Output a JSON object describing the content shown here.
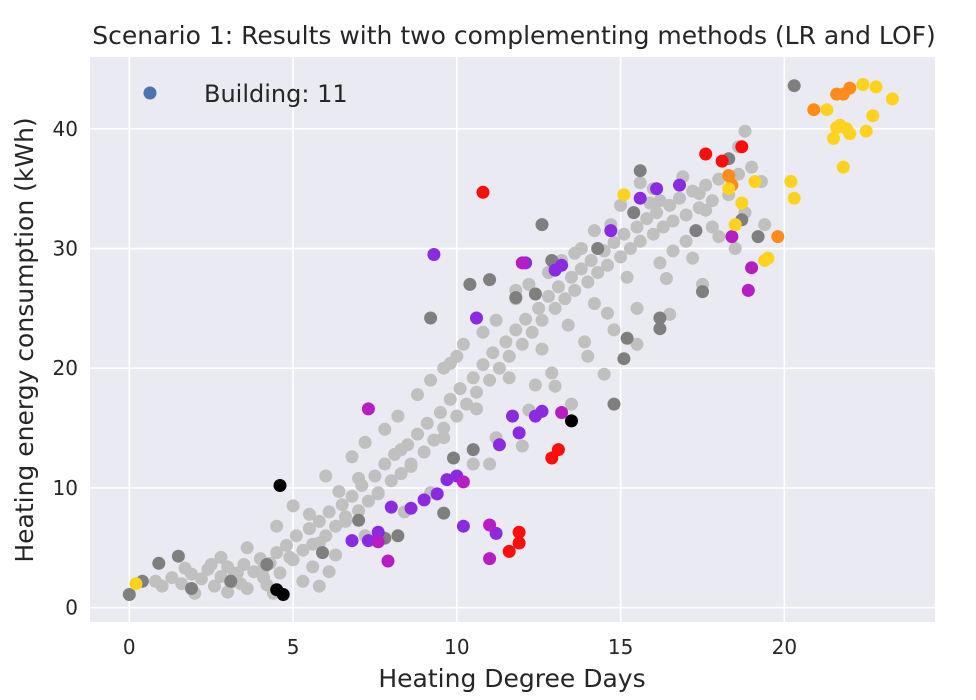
{
  "chart_data": {
    "type": "scatter",
    "title": "Scenario 1: Results with two complementing methods (LR and LOF)",
    "xlabel": "Heating Degree Days",
    "ylabel": "Heating energy consumption (kWh)",
    "xlim": [
      -1.2,
      24.6
    ],
    "ylim": [
      -1.2,
      46
    ],
    "xticks": [
      0,
      5,
      10,
      15,
      20
    ],
    "yticks": [
      0,
      10,
      20,
      30,
      40
    ],
    "grid": true,
    "background": "#eaeaf2",
    "legend": {
      "placement": "top-left",
      "entries": [
        {
          "label": "Building: 11",
          "color": "#4c72b0"
        }
      ]
    },
    "series": [
      {
        "color": "#c0c0c0",
        "points": [
          [
            0.8,
            2.2
          ],
          [
            1.0,
            1.8
          ],
          [
            1.3,
            2.5
          ],
          [
            1.6,
            2.0
          ],
          [
            1.9,
            2.8
          ],
          [
            2.2,
            2.4
          ],
          [
            2.4,
            3.2
          ],
          [
            2.6,
            1.8
          ],
          [
            2.8,
            2.6
          ],
          [
            3.0,
            3.4
          ],
          [
            3.1,
            2.1
          ],
          [
            3.3,
            2.9
          ],
          [
            3.5,
            3.6
          ],
          [
            3.6,
            1.6
          ],
          [
            3.8,
            3.0
          ],
          [
            4.0,
            4.1
          ],
          [
            4.1,
            2.5
          ],
          [
            4.3,
            3.7
          ],
          [
            4.5,
            4.6
          ],
          [
            4.6,
            2.9
          ],
          [
            4.8,
            5.2
          ],
          [
            5.0,
            4.0
          ],
          [
            5.1,
            6.0
          ],
          [
            5.3,
            4.8
          ],
          [
            5.5,
            6.6
          ],
          [
            5.6,
            5.3
          ],
          [
            5.8,
            7.2
          ],
          [
            6.0,
            6.0
          ],
          [
            6.1,
            8.0
          ],
          [
            6.3,
            6.8
          ],
          [
            6.5,
            8.6
          ],
          [
            6.6,
            7.2
          ],
          [
            6.8,
            9.3
          ],
          [
            7.0,
            8.1
          ],
          [
            7.1,
            10.2
          ],
          [
            7.3,
            8.9
          ],
          [
            7.5,
            11.0
          ],
          [
            7.6,
            9.5
          ],
          [
            7.8,
            12.0
          ],
          [
            8.0,
            10.6
          ],
          [
            8.1,
            12.8
          ],
          [
            8.3,
            11.2
          ],
          [
            8.5,
            13.6
          ],
          [
            8.6,
            12.0
          ],
          [
            8.8,
            14.5
          ],
          [
            9.0,
            13.0
          ],
          [
            9.1,
            15.4
          ],
          [
            9.3,
            14.0
          ],
          [
            9.5,
            16.3
          ],
          [
            9.6,
            15.0
          ],
          [
            9.8,
            17.4
          ],
          [
            10.0,
            16.0
          ],
          [
            10.1,
            18.3
          ],
          [
            10.3,
            17.0
          ],
          [
            10.5,
            19.2
          ],
          [
            10.6,
            18.0
          ],
          [
            10.8,
            20.3
          ],
          [
            11.0,
            19.0
          ],
          [
            11.1,
            21.3
          ],
          [
            11.3,
            20.0
          ],
          [
            11.5,
            22.2
          ],
          [
            11.6,
            21.0
          ],
          [
            11.8,
            23.2
          ],
          [
            12.0,
            22.0
          ],
          [
            12.1,
            24.1
          ],
          [
            12.3,
            23.0
          ],
          [
            12.5,
            25.0
          ],
          [
            12.6,
            24.0
          ],
          [
            12.8,
            26.0
          ],
          [
            13.0,
            25.0
          ],
          [
            13.1,
            26.8
          ],
          [
            13.3,
            25.8
          ],
          [
            13.5,
            27.6
          ],
          [
            13.6,
            26.5
          ],
          [
            13.8,
            28.3
          ],
          [
            14.0,
            27.2
          ],
          [
            14.1,
            29.0
          ],
          [
            14.3,
            28.0
          ],
          [
            14.5,
            29.8
          ],
          [
            14.6,
            28.6
          ],
          [
            14.8,
            30.5
          ],
          [
            15.0,
            29.3
          ],
          [
            15.1,
            31.2
          ],
          [
            15.3,
            30.0
          ],
          [
            15.5,
            31.8
          ],
          [
            15.6,
            30.6
          ],
          [
            15.8,
            32.5
          ],
          [
            16.0,
            31.2
          ],
          [
            16.1,
            33.0
          ],
          [
            16.3,
            31.8
          ],
          [
            16.5,
            33.6
          ],
          [
            16.6,
            32.3
          ],
          [
            16.8,
            34.2
          ],
          [
            17.0,
            32.8
          ],
          [
            17.2,
            34.8
          ],
          [
            17.4,
            33.4
          ],
          [
            17.6,
            35.3
          ],
          [
            17.8,
            34.0
          ],
          [
            18.0,
            35.8
          ],
          [
            18.3,
            34.5
          ],
          [
            2.0,
            1.2
          ],
          [
            3.0,
            1.3
          ],
          [
            4.2,
            1.9
          ],
          [
            5.6,
            3.4
          ],
          [
            6.3,
            4.4
          ],
          [
            7.2,
            6.0
          ],
          [
            8.4,
            8.0
          ],
          [
            9.2,
            9.6
          ],
          [
            10.5,
            12.0
          ],
          [
            11.2,
            14.2
          ],
          [
            12.2,
            16.5
          ],
          [
            13.0,
            18.5
          ],
          [
            14.0,
            21.0
          ],
          [
            14.8,
            23.2
          ],
          [
            15.5,
            25.0
          ],
          [
            16.4,
            27.5
          ],
          [
            17.2,
            29.2
          ],
          [
            18.0,
            31.0
          ],
          [
            18.8,
            33.0
          ],
          [
            19.0,
            36.8
          ],
          [
            18.8,
            39.8
          ],
          [
            18.6,
            38.5
          ],
          [
            17.4,
            34.6
          ],
          [
            16.9,
            36.0
          ],
          [
            16.2,
            34.0
          ],
          [
            15.6,
            35.5
          ],
          [
            6.0,
            11.0
          ],
          [
            7.2,
            13.8
          ],
          [
            8.2,
            16.0
          ],
          [
            9.2,
            19.0
          ],
          [
            10.2,
            22.0
          ],
          [
            11.2,
            24.0
          ],
          [
            12.2,
            27.0
          ],
          [
            13.2,
            29.0
          ],
          [
            5.0,
            8.5
          ],
          [
            4.5,
            6.8
          ],
          [
            3.6,
            5.0
          ],
          [
            2.8,
            4.2
          ],
          [
            6.8,
            12.6
          ],
          [
            7.8,
            14.9
          ],
          [
            8.8,
            17.8
          ],
          [
            9.8,
            20.4
          ],
          [
            10.8,
            23.0
          ],
          [
            11.8,
            25.8
          ],
          [
            12.8,
            28.0
          ],
          [
            13.8,
            30.0
          ],
          [
            14.7,
            32.0
          ],
          [
            15.9,
            33.8
          ],
          [
            3.4,
            2.0
          ],
          [
            5.3,
            2.2
          ],
          [
            6.1,
            3.0
          ],
          [
            5.8,
            1.8
          ],
          [
            4.4,
            1.2
          ],
          [
            2.5,
            3.6
          ],
          [
            1.7,
            3.3
          ],
          [
            11.0,
            12.0
          ],
          [
            12.0,
            13.5
          ],
          [
            13.5,
            17.0
          ],
          [
            14.5,
            19.5
          ],
          [
            15.5,
            22.0
          ],
          [
            16.5,
            24.5
          ],
          [
            17.5,
            27.0
          ],
          [
            18.5,
            30.0
          ],
          [
            19.4,
            32.0
          ],
          [
            17.8,
            31.8
          ],
          [
            16.6,
            29.8
          ],
          [
            15.2,
            27.6
          ],
          [
            14.2,
            25.4
          ],
          [
            13.4,
            23.6
          ],
          [
            12.6,
            21.6
          ],
          [
            11.6,
            19.2
          ],
          [
            10.6,
            16.6
          ],
          [
            9.6,
            14.2
          ],
          [
            8.6,
            11.8
          ],
          [
            7.6,
            9.6
          ],
          [
            6.6,
            7.6
          ],
          [
            5.8,
            5.4
          ],
          [
            4.9,
            4.2
          ],
          [
            4.1,
            3.3
          ],
          [
            3.2,
            2.6
          ],
          [
            10.0,
            21.0
          ],
          [
            9.6,
            20.0
          ],
          [
            11.8,
            26.5
          ],
          [
            13.6,
            29.6
          ],
          [
            14.2,
            31.5
          ],
          [
            15.0,
            33.6
          ],
          [
            16.0,
            35.0
          ],
          [
            18.6,
            36.2
          ],
          [
            19.3,
            35.6
          ],
          [
            8.3,
            13.2
          ],
          [
            7.0,
            10.8
          ],
          [
            6.4,
            9.7
          ],
          [
            5.5,
            7.8
          ],
          [
            12.9,
            19.6
          ],
          [
            14.6,
            24.6
          ],
          [
            16.2,
            28.8
          ],
          [
            17.0,
            30.6
          ],
          [
            17.6,
            33.2
          ],
          [
            13.9,
            22.2
          ],
          [
            12.4,
            18.6
          ]
        ]
      },
      {
        "color": "#7f7f7f",
        "points": [
          [
            0.0,
            1.1
          ],
          [
            0.4,
            2.2
          ],
          [
            0.9,
            3.7
          ],
          [
            1.5,
            4.3
          ],
          [
            1.9,
            1.6
          ],
          [
            3.1,
            2.2
          ],
          [
            4.2,
            3.6
          ],
          [
            7.0,
            7.3
          ],
          [
            7.8,
            5.8
          ],
          [
            9.6,
            7.9
          ],
          [
            9.2,
            24.2
          ],
          [
            10.4,
            27.0
          ],
          [
            11.0,
            27.4
          ],
          [
            11.8,
            25.9
          ],
          [
            12.4,
            26.2
          ],
          [
            12.6,
            32.0
          ],
          [
            12.9,
            29.0
          ],
          [
            14.3,
            30.0
          ],
          [
            14.8,
            17.0
          ],
          [
            15.1,
            20.8
          ],
          [
            15.2,
            22.5
          ],
          [
            15.4,
            33.0
          ],
          [
            15.6,
            36.5
          ],
          [
            16.2,
            24.2
          ],
          [
            16.2,
            23.3
          ],
          [
            17.3,
            31.5
          ],
          [
            17.5,
            26.4
          ],
          [
            18.3,
            37.5
          ],
          [
            18.7,
            32.4
          ],
          [
            19.2,
            31.0
          ],
          [
            20.3,
            43.6
          ],
          [
            10.5,
            13.2
          ],
          [
            9.9,
            12.5
          ],
          [
            8.2,
            6.0
          ],
          [
            5.9,
            4.6
          ]
        ]
      },
      {
        "color": "#000000",
        "points": [
          [
            4.6,
            10.2
          ],
          [
            4.5,
            1.5
          ],
          [
            4.7,
            1.1
          ],
          [
            13.5,
            15.6
          ]
        ]
      },
      {
        "color": "#8a2be2",
        "points": [
          [
            6.8,
            5.6
          ],
          [
            7.3,
            5.6
          ],
          [
            7.6,
            6.3
          ],
          [
            8.0,
            8.4
          ],
          [
            8.6,
            8.3
          ],
          [
            9.0,
            9.0
          ],
          [
            9.4,
            9.5
          ],
          [
            9.7,
            10.7
          ],
          [
            10.0,
            11.0
          ],
          [
            10.2,
            6.8
          ],
          [
            10.6,
            24.2
          ],
          [
            11.2,
            6.2
          ],
          [
            11.3,
            13.6
          ],
          [
            11.9,
            14.6
          ],
          [
            12.4,
            16.0
          ],
          [
            12.6,
            16.4
          ],
          [
            13.0,
            28.2
          ],
          [
            13.2,
            28.6
          ],
          [
            14.7,
            31.5
          ],
          [
            15.6,
            34.2
          ],
          [
            16.1,
            35.0
          ],
          [
            16.8,
            35.3
          ],
          [
            9.3,
            29.5
          ],
          [
            12.1,
            28.8
          ],
          [
            11.7,
            16.0
          ]
        ]
      },
      {
        "color": "#b71cc5",
        "points": [
          [
            7.3,
            16.6
          ],
          [
            7.9,
            3.9
          ],
          [
            10.2,
            10.5
          ],
          [
            11.0,
            6.9
          ],
          [
            11.0,
            4.1
          ],
          [
            12.0,
            28.8
          ],
          [
            13.2,
            16.3
          ],
          [
            18.9,
            26.5
          ],
          [
            19.0,
            28.4
          ],
          [
            18.4,
            31.0
          ],
          [
            7.6,
            5.5
          ]
        ]
      },
      {
        "color": "#ff0d0d",
        "points": [
          [
            10.8,
            34.7
          ],
          [
            11.6,
            4.7
          ],
          [
            11.9,
            6.3
          ],
          [
            11.9,
            5.4
          ],
          [
            12.9,
            12.5
          ],
          [
            13.1,
            13.2
          ],
          [
            17.6,
            37.9
          ],
          [
            18.1,
            37.3
          ],
          [
            18.7,
            38.5
          ]
        ]
      },
      {
        "color": "#ff8c1a",
        "points": [
          [
            18.3,
            36.1
          ],
          [
            19.8,
            31.0
          ],
          [
            20.9,
            41.6
          ],
          [
            21.6,
            42.9
          ],
          [
            21.8,
            42.9
          ],
          [
            22.0,
            43.4
          ],
          [
            18.4,
            35.3
          ]
        ]
      },
      {
        "color": "#ffd21f",
        "points": [
          [
            0.2,
            2.0
          ],
          [
            15.1,
            34.5
          ],
          [
            18.3,
            35.0
          ],
          [
            18.7,
            33.8
          ],
          [
            18.5,
            32.0
          ],
          [
            19.1,
            35.6
          ],
          [
            19.4,
            29.0
          ],
          [
            19.5,
            29.2
          ],
          [
            20.2,
            35.6
          ],
          [
            20.3,
            34.2
          ],
          [
            21.3,
            41.6
          ],
          [
            21.6,
            40.1
          ],
          [
            21.5,
            39.2
          ],
          [
            21.7,
            40.3
          ],
          [
            21.8,
            36.8
          ],
          [
            22.0,
            39.6
          ],
          [
            22.4,
            43.7
          ],
          [
            22.5,
            39.8
          ],
          [
            22.7,
            41.1
          ],
          [
            22.8,
            43.5
          ],
          [
            23.3,
            42.5
          ],
          [
            21.9,
            40.0
          ]
        ]
      }
    ]
  }
}
